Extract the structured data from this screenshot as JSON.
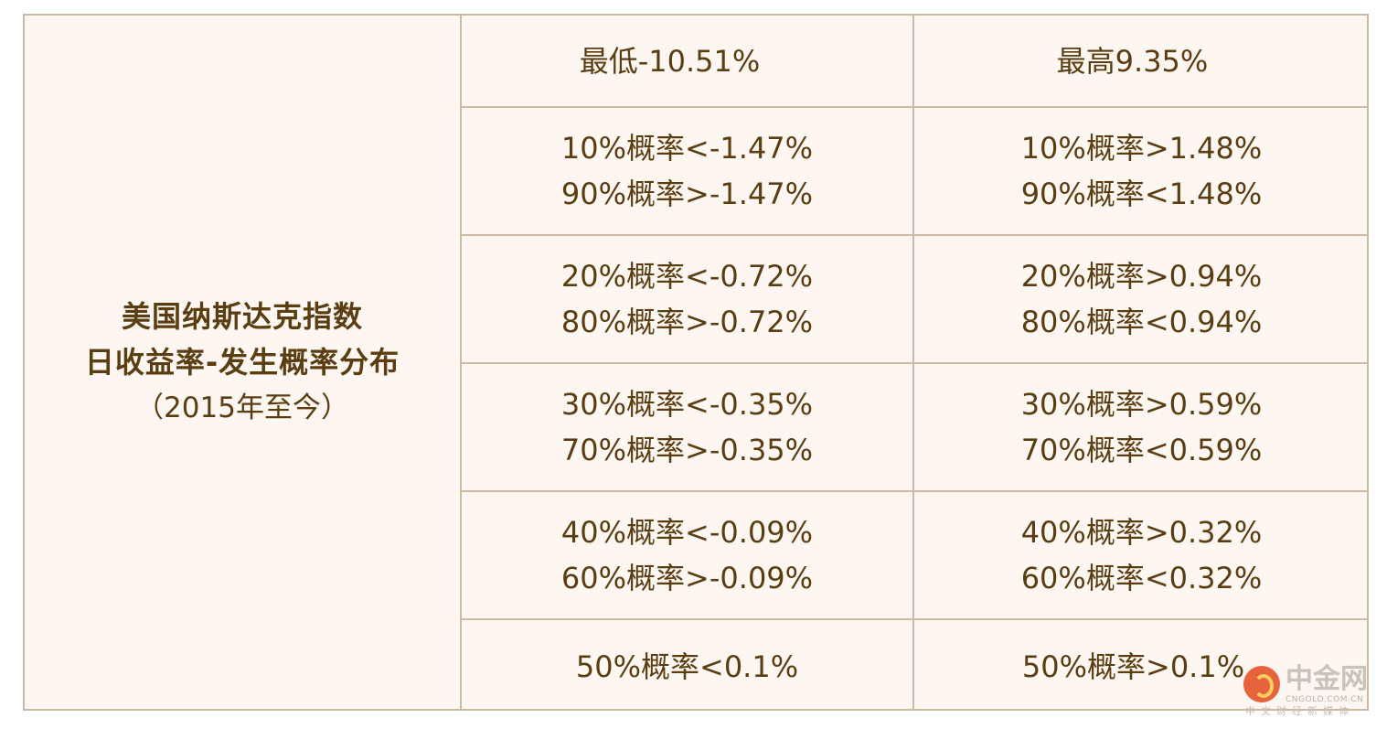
{
  "left_label": {
    "line1": "美国纳斯达克指数",
    "line2": "日收益率-发生概率分布",
    "line3": "（2015年至今）"
  },
  "rows": [
    {
      "left": [
        "最低-10.51%"
      ],
      "right": [
        "最高9.35%"
      ]
    },
    {
      "left": [
        "10%概率<-1.47%",
        "90%概率>-1.47%"
      ],
      "right": [
        "10%概率>1.48%",
        "90%概率<1.48%"
      ]
    },
    {
      "left": [
        "20%概率<-0.72%",
        "80%概率>-0.72%"
      ],
      "right": [
        "20%概率>0.94%",
        "80%概率<0.94%"
      ]
    },
    {
      "left": [
        "30%概率<-0.35%",
        "70%概率>-0.35%"
      ],
      "right": [
        "30%概率>0.59%",
        "70%概率<0.59%"
      ]
    },
    {
      "left": [
        "40%概率<-0.09%",
        "60%概率>-0.09%"
      ],
      "right": [
        "40%概率>0.32%",
        "60%概率<0.32%"
      ]
    },
    {
      "left": [
        "50%概率<0.1%"
      ],
      "right": [
        "50%概率>0.1%"
      ]
    }
  ],
  "watermark": {
    "brand": "中金网",
    "domain": "CNGOLD.COM.CN",
    "slogan": "中文财经新媒体"
  },
  "colors": {
    "text": "#5a3e12",
    "border": "#cdb9a4",
    "background": "#fdf6f1"
  }
}
